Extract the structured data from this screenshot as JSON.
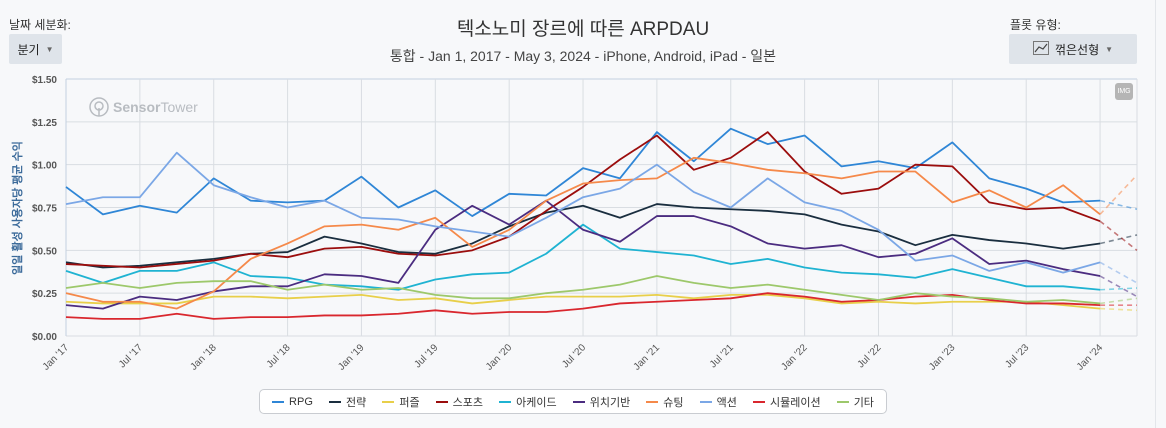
{
  "controls": {
    "granularity_label": "날짜 세분화:",
    "granularity_value": "분기",
    "plot_type_label": "플롯 유형:",
    "plot_type_value": "꺾은선형",
    "img_button": "IMG"
  },
  "watermark": {
    "bold": "Sensor",
    "light": "Tower"
  },
  "chart_data": {
    "type": "line",
    "title": "텍소노미 장르에 따른 ARPDAU",
    "subtitle": "통합 - Jan 1, 2017 - May 3, 2024 - iPhone, Android, iPad - 일본",
    "ylabel": "일일 활성 사용자당 평균 수익",
    "xlabel": "",
    "ylim": [
      0,
      1.5
    ],
    "yticks": [
      "$0.00",
      "$0.25",
      "$0.50",
      "$0.75",
      "$1.00",
      "$1.25",
      "$1.50"
    ],
    "yticks_values": [
      0,
      0.25,
      0.5,
      0.75,
      1.0,
      1.25,
      1.5
    ],
    "x": [
      "2017-01",
      "2017-04",
      "2017-07",
      "2017-10",
      "2018-01",
      "2018-04",
      "2018-07",
      "2018-10",
      "2019-01",
      "2019-04",
      "2019-07",
      "2019-10",
      "2020-01",
      "2020-04",
      "2020-07",
      "2020-10",
      "2021-01",
      "2021-04",
      "2021-07",
      "2021-10",
      "2022-01",
      "2022-04",
      "2022-07",
      "2022-10",
      "2023-01",
      "2023-04",
      "2023-07",
      "2023-10",
      "2024-01",
      "2024-04"
    ],
    "xticks": [
      "Jan '17",
      "Jul '17",
      "Jan '18",
      "Jul '18",
      "Jan '19",
      "Jul '19",
      "Jan '20",
      "Jul '20",
      "Jan '21",
      "Jul '21",
      "Jan '22",
      "Jul '22",
      "Jan '23",
      "Jul '23",
      "Jan '24"
    ],
    "last_point_partial": true,
    "grid": true,
    "legend_placement": "bottom",
    "series": [
      {
        "name": "RPG",
        "color": "#2f86d6",
        "values": [
          0.87,
          0.71,
          0.76,
          0.72,
          0.92,
          0.79,
          0.78,
          0.79,
          0.93,
          0.75,
          0.85,
          0.7,
          0.83,
          0.82,
          0.98,
          0.92,
          1.19,
          1.02,
          1.21,
          1.12,
          1.17,
          0.99,
          1.02,
          0.98,
          1.13,
          0.92,
          0.86,
          0.78,
          0.79,
          0.74
        ]
      },
      {
        "name": "전략",
        "color": "#1a2e3f",
        "values": [
          0.43,
          0.4,
          0.41,
          0.43,
          0.45,
          0.48,
          0.49,
          0.58,
          0.54,
          0.49,
          0.48,
          0.54,
          0.64,
          0.72,
          0.76,
          0.69,
          0.77,
          0.75,
          0.74,
          0.73,
          0.71,
          0.65,
          0.61,
          0.53,
          0.59,
          0.56,
          0.54,
          0.51,
          0.54,
          0.59
        ]
      },
      {
        "name": "퍼즐",
        "color": "#e8cf4a",
        "values": [
          0.2,
          0.19,
          0.19,
          0.19,
          0.23,
          0.23,
          0.22,
          0.23,
          0.24,
          0.21,
          0.22,
          0.19,
          0.21,
          0.23,
          0.23,
          0.23,
          0.24,
          0.22,
          0.24,
          0.24,
          0.22,
          0.19,
          0.2,
          0.19,
          0.2,
          0.2,
          0.2,
          0.18,
          0.16,
          0.15
        ]
      },
      {
        "name": "스포츠",
        "color": "#9b0d0d",
        "values": [
          0.42,
          0.41,
          0.4,
          0.42,
          0.44,
          0.48,
          0.46,
          0.51,
          0.52,
          0.48,
          0.47,
          0.5,
          0.58,
          0.73,
          0.87,
          1.03,
          1.17,
          0.97,
          1.04,
          1.19,
          0.96,
          0.83,
          0.86,
          1.0,
          0.99,
          0.78,
          0.74,
          0.75,
          0.67,
          0.5
        ]
      },
      {
        "name": "아케이드",
        "color": "#1fb3d2",
        "values": [
          0.38,
          0.31,
          0.38,
          0.38,
          0.43,
          0.35,
          0.34,
          0.3,
          0.29,
          0.27,
          0.33,
          0.36,
          0.37,
          0.48,
          0.65,
          0.51,
          0.49,
          0.47,
          0.42,
          0.45,
          0.4,
          0.37,
          0.36,
          0.34,
          0.39,
          0.34,
          0.29,
          0.29,
          0.27,
          0.28
        ]
      },
      {
        "name": "위치기반",
        "color": "#4b2c80",
        "values": [
          0.18,
          0.16,
          0.23,
          0.21,
          0.26,
          0.29,
          0.29,
          0.36,
          0.35,
          0.31,
          0.62,
          0.76,
          0.65,
          0.79,
          0.62,
          0.55,
          0.7,
          0.7,
          0.64,
          0.54,
          0.51,
          0.53,
          0.46,
          0.48,
          0.57,
          0.42,
          0.44,
          0.39,
          0.35,
          0.23
        ]
      },
      {
        "name": "슈팅",
        "color": "#f5894a",
        "values": [
          0.25,
          0.2,
          0.2,
          0.16,
          0.26,
          0.45,
          0.54,
          0.64,
          0.65,
          0.62,
          0.69,
          0.52,
          0.62,
          0.79,
          0.89,
          0.91,
          0.92,
          1.04,
          1.01,
          0.97,
          0.95,
          0.92,
          0.96,
          0.96,
          0.78,
          0.85,
          0.75,
          0.88,
          0.71,
          0.94
        ]
      },
      {
        "name": "액션",
        "color": "#7ba7e6",
        "values": [
          0.77,
          0.81,
          0.81,
          1.07,
          0.88,
          0.81,
          0.75,
          0.79,
          0.69,
          0.68,
          0.64,
          0.61,
          0.58,
          0.69,
          0.81,
          0.86,
          1.0,
          0.84,
          0.75,
          0.92,
          0.78,
          0.73,
          0.62,
          0.44,
          0.47,
          0.38,
          0.43,
          0.37,
          0.43,
          0.31
        ]
      },
      {
        "name": "시뮬레이션",
        "color": "#d9272e",
        "values": [
          0.11,
          0.1,
          0.1,
          0.13,
          0.1,
          0.11,
          0.11,
          0.12,
          0.12,
          0.13,
          0.15,
          0.13,
          0.14,
          0.14,
          0.16,
          0.19,
          0.2,
          0.21,
          0.22,
          0.25,
          0.23,
          0.2,
          0.21,
          0.23,
          0.24,
          0.21,
          0.19,
          0.19,
          0.18,
          0.18
        ]
      },
      {
        "name": "기타",
        "color": "#9dc86b",
        "values": [
          0.28,
          0.31,
          0.28,
          0.31,
          0.32,
          0.32,
          0.27,
          0.3,
          0.27,
          0.28,
          0.24,
          0.22,
          0.22,
          0.25,
          0.27,
          0.3,
          0.35,
          0.31,
          0.28,
          0.3,
          0.27,
          0.24,
          0.21,
          0.25,
          0.23,
          0.22,
          0.2,
          0.21,
          0.19,
          0.22
        ]
      }
    ]
  }
}
